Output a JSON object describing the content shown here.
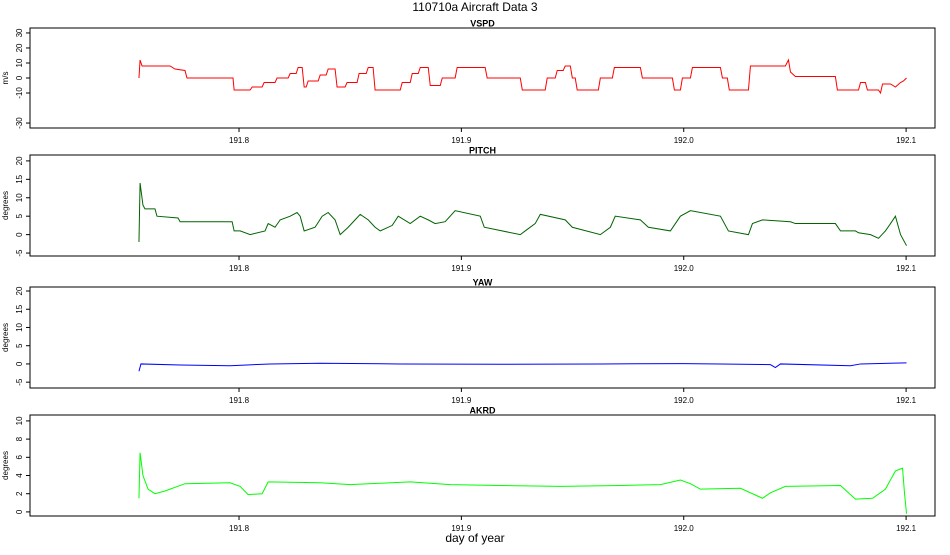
{
  "figure": {
    "title": "110710a   Aircraft Data 3",
    "xlabel": "day of year"
  },
  "chart_data": [
    {
      "type": "line",
      "title": "VSPD",
      "ylabel": "m/s",
      "color": "#ff0000",
      "xlim": [
        191.706,
        192.113
      ],
      "xticks": [
        191.8,
        191.9,
        {
          "value": 192,
          "label": "192.0"
        },
        192.1
      ],
      "ylim": [
        -33.3,
        33.3
      ],
      "yticks": [
        -30,
        -10,
        0,
        10,
        20,
        30
      ],
      "x": [
        191.755,
        191.7555,
        191.7564,
        191.769,
        191.7712,
        191.7757,
        191.7766,
        191.7973,
        191.7978,
        191.805,
        191.8059,
        191.8104,
        191.8113,
        191.8162,
        191.8171,
        191.8221,
        191.823,
        191.8257,
        191.8266,
        191.8284,
        191.8293,
        191.8302,
        191.8311,
        191.8356,
        191.8365,
        191.8392,
        191.8401,
        191.8432,
        191.8441,
        191.8477,
        191.8486,
        191.8531,
        191.854,
        191.8572,
        191.8581,
        191.8603,
        191.8612,
        191.8725,
        191.8734,
        191.877,
        191.8779,
        191.8806,
        191.8815,
        191.8851,
        191.886,
        191.8905,
        191.8914,
        191.8972,
        191.8981,
        191.9107,
        191.9116,
        191.9265,
        191.9274,
        191.9377,
        191.9386,
        191.9422,
        191.9431,
        191.9458,
        191.9467,
        191.949,
        191.9499,
        191.9512,
        191.9521,
        191.9616,
        191.9625,
        191.9679,
        191.9688,
        191.9805,
        191.9814,
        191.9949,
        191.9958,
        191.9985,
        191.9994,
        192.003,
        192.0039,
        192.0165,
        192.0174,
        192.0196,
        192.0205,
        192.0291,
        192.03,
        192.0457,
        192.0471,
        192.048,
        192.0502,
        192.0682,
        192.0691,
        192.0786,
        192.0795,
        192.0817,
        192.0826,
        192.0876,
        192.0885,
        192.0894,
        192.093,
        192.0952,
        192.0975,
        192.0988,
        192.1002
      ],
      "values": [
        0,
        12,
        8,
        8,
        6,
        5,
        0,
        0,
        -8,
        -8,
        -6,
        -6,
        -3,
        -3,
        0,
        0,
        3,
        3,
        7,
        7,
        -6,
        -6,
        -2,
        -2,
        2,
        2,
        6,
        6,
        -6,
        -6,
        -3,
        -3,
        3,
        3,
        7,
        7,
        -8,
        -8,
        -3,
        -3,
        3,
        3,
        7,
        7,
        -5,
        -5,
        0,
        0,
        7,
        7,
        0,
        0,
        -8,
        -8,
        0,
        0,
        5,
        5,
        8,
        8,
        0,
        0,
        -8,
        -8,
        0,
        0,
        7,
        7,
        0,
        0,
        -8,
        -8,
        0,
        0,
        7,
        7,
        0,
        0,
        -8,
        -8,
        8,
        8,
        12,
        4,
        1,
        1,
        -8,
        -8,
        -3,
        -3,
        -8,
        -8,
        -10,
        -4,
        -4,
        -6,
        -3,
        -2,
        0
      ]
    },
    {
      "type": "line",
      "title": "PITCH",
      "ylabel": "degrees",
      "color": "#006400",
      "xlim": [
        191.706,
        192.113
      ],
      "xticks": [
        191.8,
        191.9,
        {
          "value": 192,
          "label": "192.0"
        },
        192.1
      ],
      "ylim": [
        -5.8,
        21.6
      ],
      "yticks": [
        -5,
        0,
        5,
        10,
        15,
        20
      ],
      "x": [
        191.755,
        191.7555,
        191.7568,
        191.7577,
        191.7622,
        191.7631,
        191.7726,
        191.7735,
        191.7969,
        191.7978,
        191.8005,
        191.805,
        191.8117,
        191.8131,
        191.8162,
        191.8185,
        191.823,
        191.8261,
        191.8275,
        191.8293,
        191.8342,
        191.8374,
        191.8401,
        191.8432,
        191.8455,
        191.8491,
        191.8522,
        191.8545,
        191.8581,
        191.8612,
        191.8635,
        191.8689,
        191.8716,
        191.877,
        191.8815,
        191.8851,
        191.8882,
        191.8927,
        191.8972,
        191.9085,
        191.9103,
        191.9265,
        191.9287,
        191.9332,
        191.9355,
        191.9467,
        191.9499,
        191.9625,
        191.967,
        191.9692,
        191.9805,
        191.9841,
        191.994,
        191.9985,
        192.003,
        192.0165,
        192.0201,
        192.0291,
        192.0309,
        192.0354,
        192.048,
        192.0502,
        192.0682,
        192.0705,
        192.0772,
        192.0786,
        192.084,
        192.0876,
        192.0907,
        192.093,
        192.0952,
        192.0975,
        192.1002
      ],
      "values": [
        -2,
        14,
        8,
        7,
        7,
        5,
        4.5,
        3.5,
        3.5,
        1,
        1,
        0,
        1,
        3,
        2,
        4,
        5,
        6,
        5,
        1,
        2,
        5,
        6,
        4,
        0,
        2,
        4,
        5.5,
        4,
        2,
        1,
        2.5,
        5,
        3,
        5,
        4,
        3,
        3.5,
        6.5,
        5,
        2,
        0,
        1,
        3,
        5.5,
        4,
        2,
        0,
        2,
        5,
        4,
        2,
        1,
        5,
        6.5,
        5,
        1,
        0,
        3,
        4,
        3.5,
        3,
        3,
        1,
        1,
        0.5,
        0,
        -1,
        1,
        3,
        5,
        0,
        -3
      ]
    },
    {
      "type": "line",
      "title": "YAW",
      "ylabel": "degrees",
      "color": "#0000ff",
      "xlim": [
        191.706,
        192.113
      ],
      "xticks": [
        191.8,
        191.9,
        {
          "value": 192,
          "label": "192.0"
        },
        192.1
      ],
      "ylim": [
        -6.6,
        21.1
      ],
      "yticks": [
        -5,
        0,
        5,
        10,
        15,
        20
      ],
      "x": [
        191.755,
        191.7559,
        191.7735,
        191.796,
        191.814,
        191.8365,
        191.8725,
        191.9175,
        191.9625,
        191.9998,
        192.0165,
        192.039,
        192.0412,
        192.0435,
        192.075,
        192.0795,
        192.1002
      ],
      "values": [
        -2,
        0,
        -0.3,
        -0.5,
        0,
        0.2,
        0,
        -0.1,
        0,
        0.1,
        0,
        -0.2,
        -1,
        0,
        -0.5,
        0,
        0.3
      ]
    },
    {
      "type": "line",
      "title": "AKRD",
      "ylabel": "degrees",
      "color": "#00ff00",
      "xlim": [
        191.706,
        192.113
      ],
      "xticks": [
        191.8,
        191.9,
        {
          "value": 192,
          "label": "192.0"
        },
        192.1
      ],
      "ylim": [
        -0.45,
        10.65
      ],
      "yticks": [
        0,
        2,
        4,
        6,
        8,
        10
      ],
      "x": [
        191.755,
        191.7555,
        191.7568,
        191.7591,
        191.7622,
        191.7667,
        191.7757,
        191.796,
        191.8005,
        191.8041,
        191.8104,
        191.8131,
        191.8365,
        191.85,
        191.877,
        191.895,
        191.9175,
        191.9445,
        191.9715,
        191.9895,
        191.9985,
        192.003,
        192.0075,
        192.0255,
        192.0354,
        192.039,
        192.0457,
        192.0705,
        192.0772,
        192.0849,
        192.0907,
        192.0952,
        192.0984,
        192.0993,
        192.1002
      ],
      "values": [
        1.5,
        6.5,
        4,
        2.5,
        2,
        2.3,
        3.1,
        3.2,
        2.8,
        1.9,
        2,
        3.3,
        3.2,
        3,
        3.3,
        3,
        2.9,
        2.8,
        2.9,
        3,
        3.5,
        3.1,
        2.5,
        2.6,
        1.5,
        2.1,
        2.8,
        2.9,
        1.4,
        1.5,
        2.5,
        4.5,
        4.8,
        2,
        -0.2
      ]
    }
  ]
}
